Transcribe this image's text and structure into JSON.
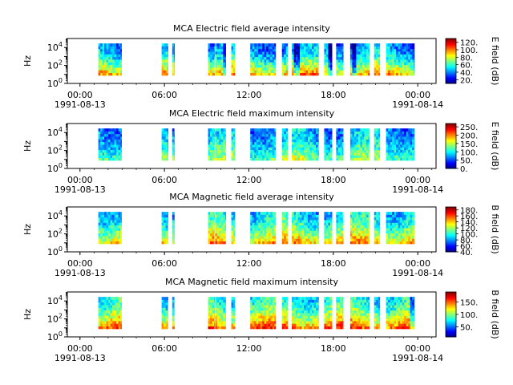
{
  "chart_data": [
    {
      "type": "heatmap",
      "title": "MCA  Electric field average intensity",
      "ylabel": "Hz",
      "yscale": "log",
      "ylim": [
        1,
        100000
      ],
      "yticks": [
        {
          "e": 0,
          "label": "10^0"
        },
        {
          "e": 2,
          "label": "10^2"
        },
        {
          "e": 4,
          "label": "10^4"
        }
      ],
      "colorbar_label": "E field (dB)",
      "colorbar_range": [
        10,
        130
      ],
      "colorbar_ticks": [
        {
          "v": 20,
          "label": "20."
        },
        {
          "v": 40,
          "label": "40."
        },
        {
          "v": 60,
          "label": "60."
        },
        {
          "v": 80,
          "label": "80."
        },
        {
          "v": 100,
          "label": "100."
        },
        {
          "v": 120,
          "label": "120."
        }
      ],
      "intensity": {
        "base": 0.25,
        "low_boost": 0.45
      }
    },
    {
      "type": "heatmap",
      "title": "MCA  Electric field maximum intensity",
      "ylabel": "Hz",
      "yscale": "log",
      "ylim": [
        1,
        100000
      ],
      "yticks": [
        {
          "e": 0,
          "label": "10^0"
        },
        {
          "e": 2,
          "label": "10^2"
        },
        {
          "e": 4,
          "label": "10^4"
        }
      ],
      "colorbar_label": "E field (dB)",
      "colorbar_range": [
        0,
        270
      ],
      "colorbar_ticks": [
        {
          "v": 0,
          "label": "0."
        },
        {
          "v": 50,
          "label": "50."
        },
        {
          "v": 100,
          "label": "100."
        },
        {
          "v": 150,
          "label": "150."
        },
        {
          "v": 200,
          "label": "200."
        },
        {
          "v": 250,
          "label": "250."
        }
      ],
      "intensity": {
        "base": 0.28,
        "low_boost": 0.22
      }
    },
    {
      "type": "heatmap",
      "title": "MCA  Magnetic field average intensity",
      "ylabel": "Hz",
      "yscale": "log",
      "ylim": [
        1,
        100000
      ],
      "yticks": [
        {
          "e": 0,
          "label": "10^0"
        },
        {
          "e": 2,
          "label": "10^2"
        },
        {
          "e": 4,
          "label": "10^4"
        }
      ],
      "colorbar_label": "B field (dB)",
      "colorbar_range": [
        40,
        190
      ],
      "colorbar_ticks": [
        {
          "v": 40,
          "label": "40."
        },
        {
          "v": 60,
          "label": "60."
        },
        {
          "v": 80,
          "label": "80."
        },
        {
          "v": 100,
          "label": "100."
        },
        {
          "v": 120,
          "label": "120."
        },
        {
          "v": 140,
          "label": "140."
        },
        {
          "v": 160,
          "label": "160."
        },
        {
          "v": 180,
          "label": "180."
        }
      ],
      "intensity": {
        "base": 0.35,
        "low_boost": 0.35
      }
    },
    {
      "type": "heatmap",
      "title": "MCA  Magnetic field maximum intensity",
      "ylabel": "Hz",
      "yscale": "log",
      "ylim": [
        1,
        100000
      ],
      "yticks": [
        {
          "e": 0,
          "label": "10^0"
        },
        {
          "e": 2,
          "label": "10^2"
        },
        {
          "e": 4,
          "label": "10^4"
        }
      ],
      "colorbar_label": "B field (dB)",
      "colorbar_range": [
        10,
        190
      ],
      "colorbar_ticks": [
        {
          "v": 50,
          "label": "50."
        },
        {
          "v": 100,
          "label": "100."
        },
        {
          "v": 150,
          "label": "150."
        }
      ],
      "intensity": {
        "base": 0.38,
        "low_boost": 0.4
      }
    }
  ],
  "time_axis": {
    "start": "1991-08-13T00:00",
    "end": "1991-08-14T00:00",
    "labels": [
      {
        "hour": 0,
        "text": "00:00",
        "date": "1991-08-13"
      },
      {
        "hour": 6,
        "text": "06:00",
        "date": ""
      },
      {
        "hour": 12,
        "text": "12:00",
        "date": ""
      },
      {
        "hour": 18,
        "text": "18:00",
        "date": ""
      },
      {
        "hour": 24,
        "text": "00:00",
        "date": "1991-08-14"
      }
    ],
    "view_hours": [
      -0.9,
      25.3
    ]
  },
  "data_intervals_hours": [
    [
      1.3,
      2.95
    ],
    [
      5.8,
      6.25
    ],
    [
      6.55,
      6.7
    ],
    [
      9.1,
      9.55
    ],
    [
      9.6,
      10.35
    ],
    [
      10.75,
      11.0
    ],
    [
      12.1,
      13.9
    ],
    [
      14.35,
      14.75
    ],
    [
      15.05,
      16.95
    ],
    [
      17.35,
      17.9
    ],
    [
      18.2,
      18.7
    ],
    [
      19.2,
      20.55
    ],
    [
      20.9,
      21.3
    ],
    [
      21.75,
      23.75
    ]
  ],
  "freq_range_log10": [
    0.9,
    4.45
  ]
}
